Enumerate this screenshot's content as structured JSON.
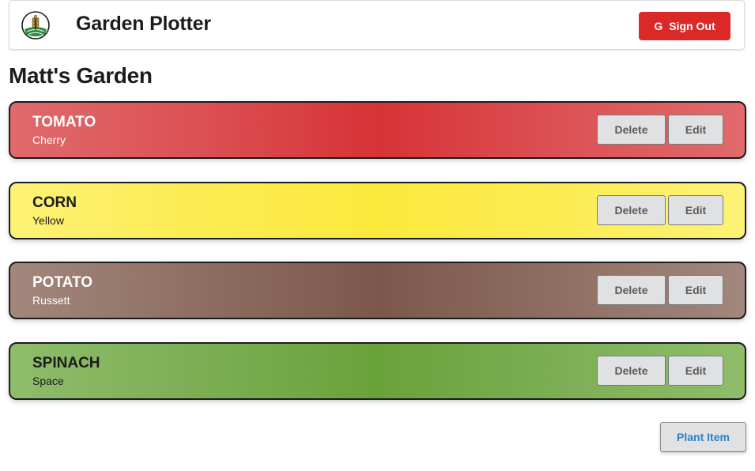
{
  "header": {
    "app_title": "Garden Plotter",
    "logo_icon": "wheat-field-logo-icon",
    "signout_icon": "google-icon",
    "signout_icon_glyph": "G",
    "signout_label": "Sign Out"
  },
  "page": {
    "title": "Matt's Garden"
  },
  "plants": [
    {
      "name": "TOMATO",
      "variety": "Cherry",
      "color": "#d63336",
      "delete_label": "Delete",
      "edit_label": "Edit"
    },
    {
      "name": "CORN",
      "variety": "Yellow",
      "color": "#fbe93c",
      "delete_label": "Delete",
      "edit_label": "Edit"
    },
    {
      "name": "POTATO",
      "variety": "Russett",
      "color": "#7b584b",
      "delete_label": "Delete",
      "edit_label": "Edit"
    },
    {
      "name": "SPINACH",
      "variety": "Space",
      "color": "#6aa23a",
      "delete_label": "Delete",
      "edit_label": "Edit"
    }
  ],
  "actions": {
    "plant_item_label": "Plant Item"
  },
  "colors": {
    "signout_bg": "#db2828",
    "button_bg": "#e0e1e2",
    "link_blue": "#2f7fc7"
  }
}
